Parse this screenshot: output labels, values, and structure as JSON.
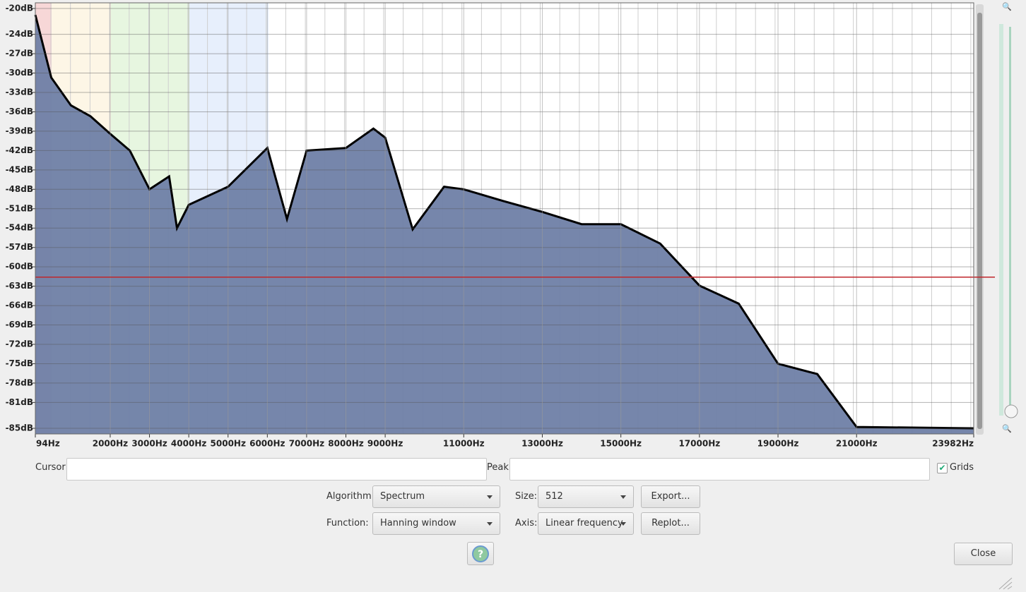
{
  "chart_data": {
    "type": "area",
    "x": [
      94,
      500,
      1000,
      1500,
      2000,
      2500,
      3000,
      3500,
      3700,
      4000,
      5000,
      6000,
      6500,
      7000,
      8000,
      8700,
      9000,
      9700,
      10500,
      11000,
      12000,
      13000,
      14000,
      15000,
      16000,
      17000,
      18000,
      19000,
      20000,
      21000,
      23982
    ],
    "values": [
      -21,
      -30.7,
      -35,
      -36.7,
      -39.4,
      -42,
      -48,
      -46,
      -54,
      -50.4,
      -47.6,
      -41.6,
      -52.6,
      -42,
      -41.6,
      -38.6,
      -40,
      -54.2,
      -47.6,
      -48,
      -49.8,
      -51.5,
      -53.4,
      -53.4,
      -56.4,
      -62.9,
      -65.7,
      -75,
      -76.6,
      -84.8,
      -85
    ],
    "color": "#6f7fa6",
    "xlim": [
      94,
      23982
    ],
    "xticks": [
      {
        "value": 94,
        "label": "94Hz"
      },
      {
        "value": 2000,
        "label": "2000Hz"
      },
      {
        "value": 3000,
        "label": "3000Hz"
      },
      {
        "value": 4000,
        "label": "4000Hz"
      },
      {
        "value": 5000,
        "label": "5000Hz"
      },
      {
        "value": 6000,
        "label": "6000Hz"
      },
      {
        "value": 7000,
        "label": "7000Hz"
      },
      {
        "value": 8000,
        "label": "8000Hz"
      },
      {
        "value": 9000,
        "label": "9000Hz"
      },
      {
        "value": 11000,
        "label": "11000Hz"
      },
      {
        "value": 13000,
        "label": "13000Hz"
      },
      {
        "value": 15000,
        "label": "15000Hz"
      },
      {
        "value": 17000,
        "label": "17000Hz"
      },
      {
        "value": 19000,
        "label": "19000Hz"
      },
      {
        "value": 21000,
        "label": "21000Hz"
      },
      {
        "value": 23982,
        "label": "23982Hz"
      }
    ],
    "ylim": [
      -85,
      -20
    ],
    "yticks": [
      {
        "value": -20,
        "label": "-20dB"
      },
      {
        "value": -24,
        "label": "-24dB"
      },
      {
        "value": -27,
        "label": "-27dB"
      },
      {
        "value": -30,
        "label": "-30dB"
      },
      {
        "value": -33,
        "label": "-33dB"
      },
      {
        "value": -36,
        "label": "-36dB"
      },
      {
        "value": -39,
        "label": "-39dB"
      },
      {
        "value": -42,
        "label": "-42dB"
      },
      {
        "value": -45,
        "label": "-45dB"
      },
      {
        "value": -48,
        "label": "-48dB"
      },
      {
        "value": -51,
        "label": "-51dB"
      },
      {
        "value": -54,
        "label": "-54dB"
      },
      {
        "value": -57,
        "label": "-57dB"
      },
      {
        "value": -60,
        "label": "-60dB"
      },
      {
        "value": -63,
        "label": "-63dB"
      },
      {
        "value": -66,
        "label": "-66dB"
      },
      {
        "value": -69,
        "label": "-69dB"
      },
      {
        "value": -72,
        "label": "-72dB"
      },
      {
        "value": -75,
        "label": "-75dB"
      },
      {
        "value": -78,
        "label": "-78dB"
      },
      {
        "value": -81,
        "label": "-81dB"
      },
      {
        "value": -85,
        "label": "-85dB"
      }
    ],
    "grid": true,
    "cursor_db": -61.6
  },
  "controls": {
    "cursor_label": "Cursor:",
    "peak_label": "Peak:",
    "grids_label": "Grids",
    "grids": true,
    "algorithm_label": "Algorithm:",
    "algorithm": "Spectrum",
    "size_label": "Size:",
    "size": "512",
    "export": "Export...",
    "function_label": "Function:",
    "function": "Hanning window",
    "axis_label": "Axis:",
    "axis": "Linear frequency",
    "replot": "Replot...",
    "close": "Close"
  }
}
